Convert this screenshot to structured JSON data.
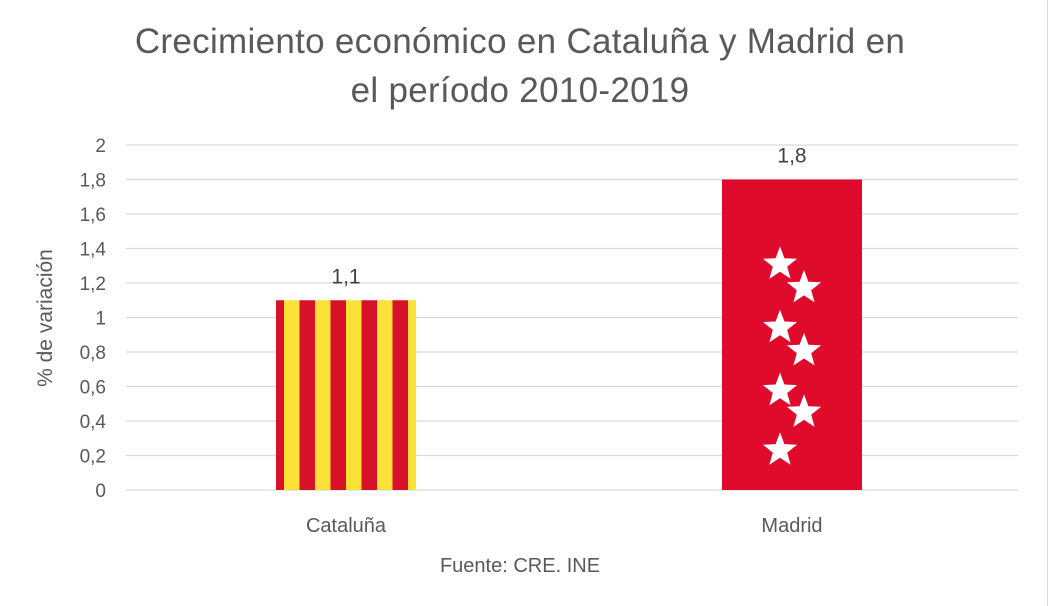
{
  "chart_data": {
    "type": "bar",
    "title_lines": [
      "Crecimiento económico en Cataluña y Madrid en",
      "el período 2010-2019"
    ],
    "ylabel": "% de variación",
    "xlabel": "",
    "categories": [
      "Cataluña",
      "Madrid"
    ],
    "values": [
      1.1,
      1.8
    ],
    "data_labels": [
      "1,1",
      "1,8"
    ],
    "ylim": [
      0,
      2
    ],
    "yticks": [
      0,
      0.2,
      0.4,
      0.6,
      0.8,
      1,
      1.2,
      1.4,
      1.6,
      1.8,
      2
    ],
    "ytick_labels": [
      "0",
      "0,2",
      "0,4",
      "0,6",
      "0,8",
      "1",
      "1,2",
      "1,4",
      "1,6",
      "1,8",
      "2"
    ],
    "grid": true,
    "bar_styles": [
      "catalan-flag-stripes",
      "madrid-flag-stars"
    ],
    "colors": {
      "catalonia_yellow": "#fce236",
      "catalonia_red": "#d8112b",
      "madrid_red": "#e00a2b",
      "star": "#ffffff",
      "grid": "#d9d9d9",
      "text": "#595959"
    },
    "source_note": "Fuente: CRE. INE"
  }
}
